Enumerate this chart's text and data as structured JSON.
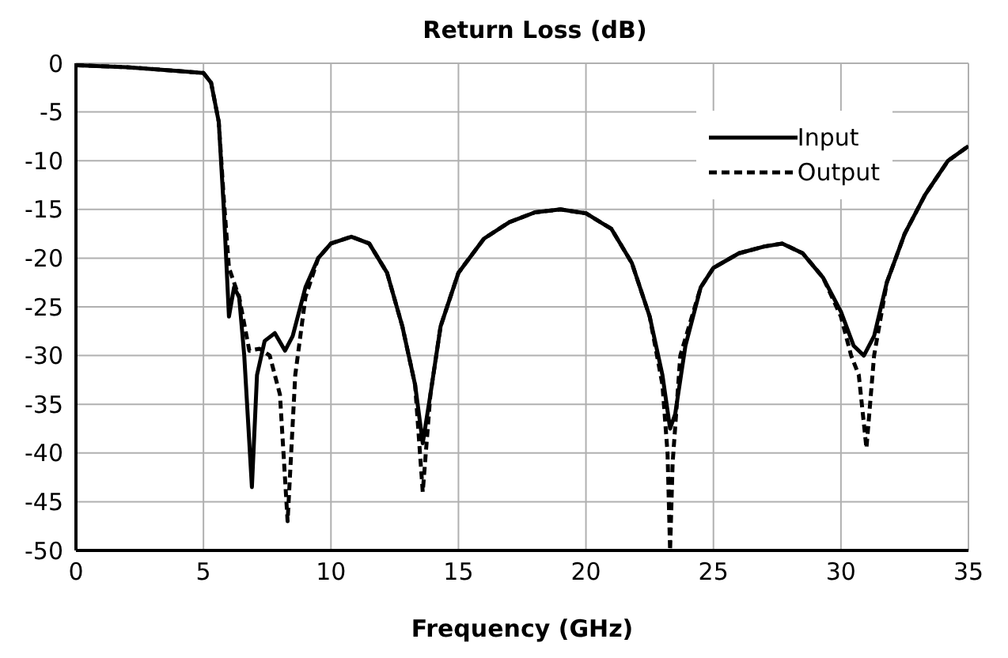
{
  "chart_data": {
    "type": "line",
    "title": "Return Loss (dB)",
    "xlabel": "Frequency (GHz)",
    "xlim": [
      0,
      35
    ],
    "xticks": [
      0,
      5,
      10,
      15,
      20,
      25,
      30,
      35
    ],
    "ylim": [
      -50,
      0
    ],
    "yticks": [
      0,
      -5,
      -10,
      -15,
      -20,
      -25,
      -30,
      -35,
      -40,
      -45,
      -50
    ],
    "grid": true,
    "legend": "top right",
    "marker": "none",
    "series": [
      {
        "name": "Input",
        "color": "#000000",
        "line_style": "solid",
        "x": [
          0,
          2,
          4,
          5,
          5.3,
          5.6,
          5.8,
          6.0,
          6.2,
          6.4,
          6.6,
          6.9,
          7.1,
          7.4,
          7.8,
          8.2,
          8.5,
          9,
          9.5,
          10,
          10.8,
          11.5,
          12.2,
          12.8,
          13.3,
          13.6,
          13.9,
          14.3,
          15,
          16,
          17,
          18,
          19,
          20,
          21,
          21.8,
          22.5,
          23,
          23.3,
          23.5,
          23.9,
          24.5,
          25,
          26,
          27,
          27.7,
          28.5,
          29.3,
          30,
          30.5,
          30.9,
          31.3,
          31.8,
          32.5,
          33.3,
          34.2,
          35
        ],
        "values": [
          -0.2,
          -0.4,
          -0.8,
          -1,
          -2,
          -6,
          -15,
          -26,
          -23,
          -24,
          -30,
          -43.5,
          -32,
          -28.5,
          -27.7,
          -29.5,
          -28,
          -23,
          -20,
          -18.5,
          -17.8,
          -18.5,
          -21.5,
          -27,
          -33,
          -39,
          -34,
          -27,
          -21.5,
          -18,
          -16.3,
          -15.3,
          -15,
          -15.4,
          -17,
          -20.5,
          -26,
          -32,
          -37.5,
          -36,
          -29,
          -23,
          -21,
          -19.5,
          -18.8,
          -18.5,
          -19.5,
          -22,
          -25.5,
          -29,
          -30,
          -28,
          -22.5,
          -17.5,
          -13.5,
          -10,
          -8.5
        ]
      },
      {
        "name": "Output",
        "color": "#000000",
        "line_style": "dashed",
        "x": [
          0,
          2,
          4,
          5,
          5.3,
          5.6,
          5.8,
          6.0,
          6.2,
          6.4,
          6.8,
          7.2,
          7.6,
          8.0,
          8.3,
          8.6,
          9,
          9.5,
          10,
          10.8,
          11.5,
          12.2,
          12.8,
          13.3,
          13.6,
          13.9,
          14.3,
          15,
          16,
          17,
          18,
          19,
          20,
          21,
          21.8,
          22.5,
          23,
          23.2,
          23.3,
          23.4,
          23.7,
          24.5,
          25,
          26,
          27,
          27.7,
          28.5,
          29.3,
          30,
          30.4,
          30.7,
          31.0,
          31.3,
          31.8,
          32.5,
          33.3,
          34.2,
          35
        ],
        "values": [
          -0.2,
          -0.4,
          -0.8,
          -1,
          -2,
          -6,
          -14,
          -21,
          -22.5,
          -24,
          -29.5,
          -29.3,
          -30,
          -34,
          -47,
          -32,
          -24,
          -20,
          -18.5,
          -17.8,
          -18.5,
          -21.5,
          -27,
          -33,
          -44,
          -34,
          -27,
          -21.5,
          -18,
          -16.3,
          -15.3,
          -15,
          -15.4,
          -17,
          -20.5,
          -26,
          -33,
          -40,
          -50,
          -41,
          -30,
          -23,
          -21,
          -19.5,
          -18.8,
          -18.5,
          -19.5,
          -22,
          -26,
          -30,
          -32,
          -39.5,
          -30,
          -22.5,
          -17.5,
          -13.5,
          -10,
          -8.5
        ]
      }
    ]
  }
}
